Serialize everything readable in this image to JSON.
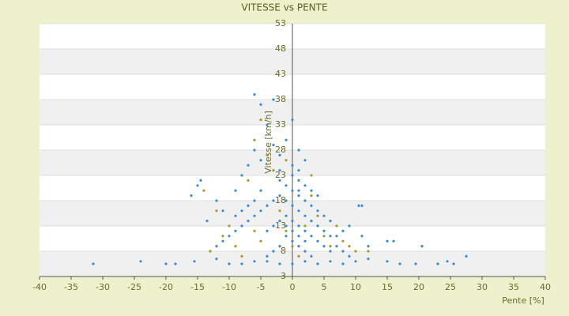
{
  "chart_data": {
    "type": "scatter",
    "title": "VITESSE vs PENTE",
    "xlabel": "Pente [%]",
    "ylabel": "Vitesse [km/h]",
    "xlim": [
      -40,
      40
    ],
    "ylim": [
      3,
      53
    ],
    "xticks": [
      -40,
      -35,
      -30,
      -25,
      -20,
      -15,
      -10,
      -5,
      0,
      5,
      10,
      15,
      20,
      25,
      30,
      35,
      40
    ],
    "yticks": [
      3,
      8,
      13,
      18,
      23,
      28,
      33,
      38,
      43,
      48,
      53
    ],
    "grid": true,
    "series": [
      {
        "color": "#3b8ad8",
        "x": [
          -31.5,
          -24,
          -20,
          -18.5,
          -15.5,
          -12,
          -10,
          -8,
          -6,
          -4,
          -2,
          0,
          2,
          4,
          6,
          8,
          10,
          12,
          15,
          17,
          19.5,
          23,
          24.5,
          25.5,
          27.5,
          -14.5,
          -15,
          -13.5,
          -16,
          -12,
          -11,
          -9,
          -8,
          -7,
          -6,
          -5,
          -3,
          -4,
          -1,
          0,
          -6,
          -5,
          -3,
          -2,
          1,
          2,
          -2,
          0,
          1,
          10.5,
          11,
          15,
          16,
          20.5,
          12,
          11,
          9,
          8,
          7,
          6,
          5,
          4,
          3,
          2,
          1,
          0,
          -1,
          -2,
          -3,
          -4,
          -5,
          -6,
          -7,
          -8,
          -9,
          -10,
          -11,
          -12,
          -1,
          0,
          1,
          2,
          3,
          4,
          5,
          6,
          7,
          8,
          9,
          -1,
          0,
          1,
          2,
          3,
          -2,
          -3,
          -4,
          0,
          1,
          2,
          3,
          4,
          5,
          6,
          0,
          1,
          2,
          -1,
          -2,
          -3,
          -4,
          -2,
          0,
          1,
          -1,
          1,
          2,
          3,
          4,
          -5,
          -6,
          -7,
          -8,
          -9
        ],
        "y": [
          5.5,
          6,
          5.5,
          5.5,
          6,
          6.5,
          5.5,
          5.5,
          6,
          6,
          5.5,
          5.5,
          6,
          5.5,
          6,
          5.5,
          6,
          6.5,
          6,
          5.5,
          5.5,
          5.5,
          6,
          5.5,
          7,
          22,
          21,
          14,
          19,
          18,
          16,
          20,
          23,
          25,
          39,
          37,
          38,
          33,
          30,
          34,
          28,
          26,
          29,
          27,
          28,
          26,
          24,
          23,
          22,
          17,
          17,
          10,
          10,
          9,
          9,
          11,
          13,
          12,
          11,
          14,
          15,
          16,
          17,
          18,
          19,
          20,
          21,
          19,
          18,
          17,
          16,
          15,
          14,
          13,
          12,
          11,
          10,
          9,
          15,
          14,
          13,
          12,
          11,
          10,
          9,
          8,
          9,
          8,
          7,
          11,
          10,
          9,
          8,
          7,
          9,
          8,
          7,
          17,
          16,
          15,
          14,
          13,
          12,
          11,
          12,
          11,
          10,
          13,
          14,
          13,
          12,
          22,
          25,
          24,
          18,
          20,
          21,
          20,
          19,
          20,
          18,
          17,
          16,
          15
        ]
      },
      {
        "color": "#a89a1e",
        "x": [
          -14,
          -12,
          -10,
          -9,
          -7,
          -6,
          -5,
          -4,
          -3,
          -2,
          -1,
          0,
          1,
          2,
          3,
          4,
          5,
          6,
          7,
          8,
          10,
          -8,
          -11,
          -13,
          -6,
          -5,
          3,
          -1,
          9,
          12
        ],
        "y": [
          20,
          16,
          13,
          9,
          22,
          30,
          34,
          27,
          24,
          16,
          12,
          9,
          7,
          13,
          19,
          15,
          11,
          9,
          13,
          10,
          8,
          7,
          11,
          8,
          12,
          10,
          23,
          26,
          9,
          8
        ]
      }
    ]
  }
}
